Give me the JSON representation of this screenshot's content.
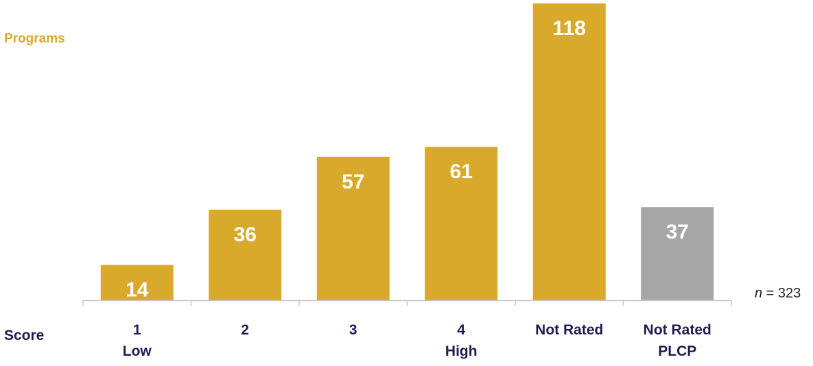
{
  "chart_data": {
    "type": "bar",
    "ylabel": "Programs",
    "xlabel": "Score",
    "categories": [
      [
        "1",
        "Low"
      ],
      [
        "2"
      ],
      [
        "3"
      ],
      [
        "4",
        "High"
      ],
      [
        "Not Rated"
      ],
      [
        "Not Rated",
        "PLCP"
      ]
    ],
    "values": [
      14,
      36,
      57,
      61,
      118,
      37
    ],
    "bar_colors": [
      "#d9a92b",
      "#d9a92b",
      "#d9a92b",
      "#d9a92b",
      "#d9a92b",
      "#a6a6a6"
    ],
    "ylim": [
      0,
      120
    ],
    "grid": false,
    "legend": "none",
    "note_var": "n",
    "note_rest": " = 323"
  },
  "colors": {
    "accent": "#d9a92b",
    "muted": "#a6a6a6",
    "label_navy": "#1f1d4e",
    "axis": "#c8c8c8"
  }
}
